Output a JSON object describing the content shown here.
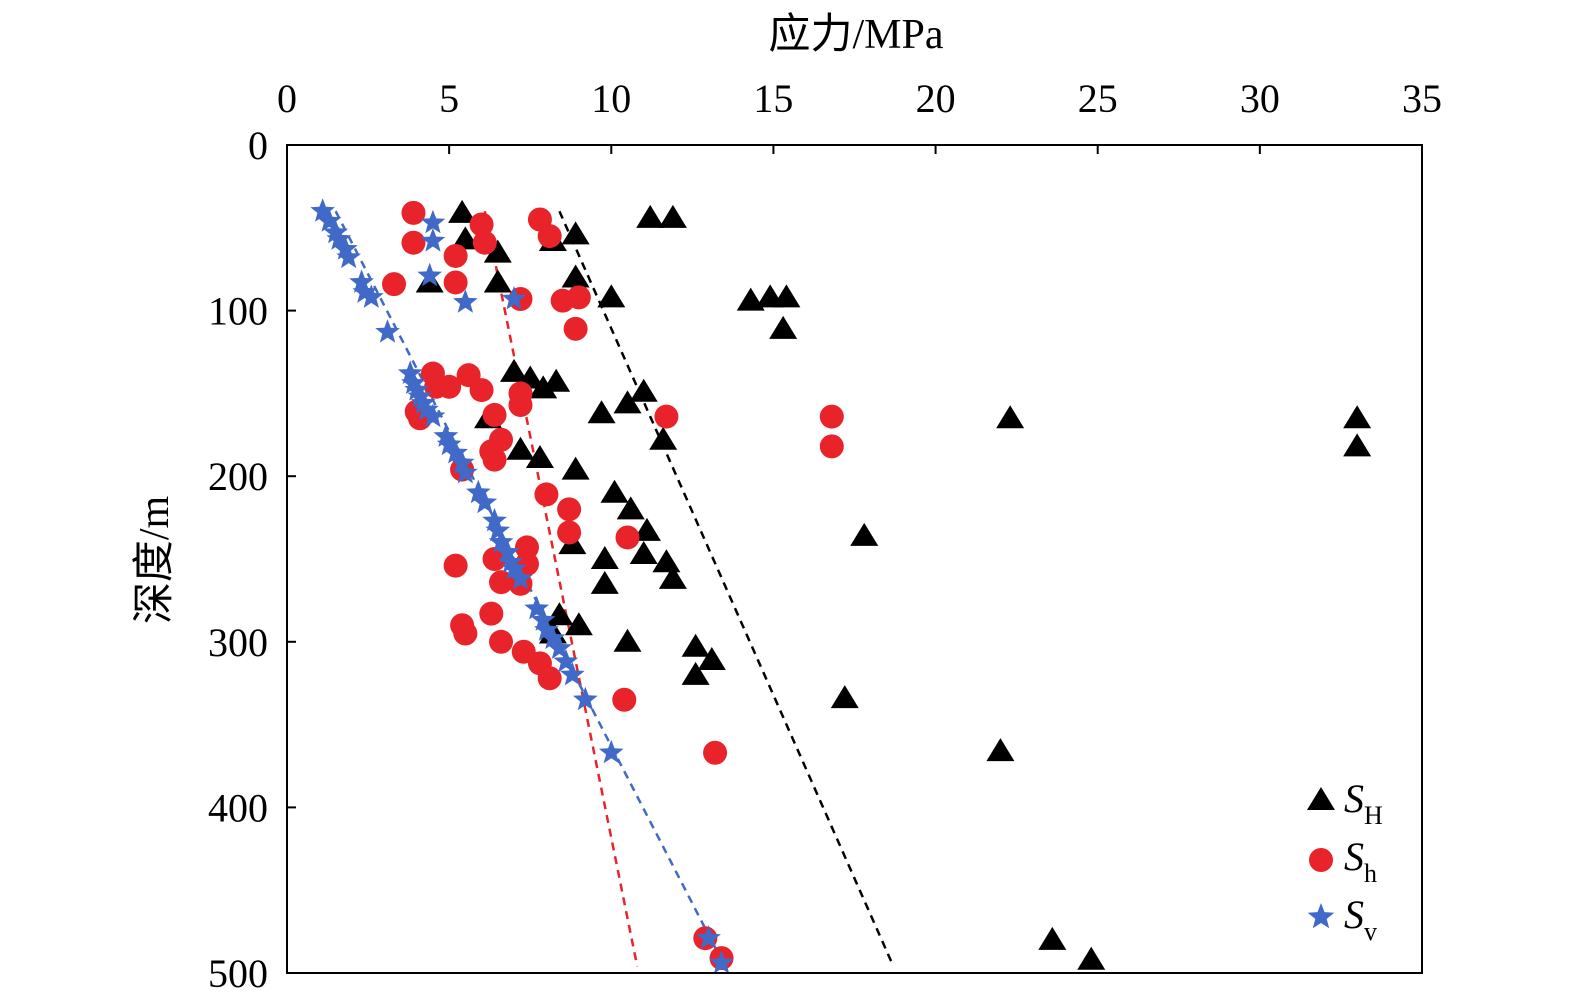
{
  "chart_data": {
    "type": "scatter",
    "xlabel": "应力/MPa",
    "ylabel": "深度/m",
    "xlim": [
      0,
      35
    ],
    "ylim": [
      0,
      500
    ],
    "y_inverted": true,
    "x_axis_position": "top",
    "x_ticks": [
      "0",
      "5",
      "10",
      "15",
      "20",
      "25",
      "30",
      "35"
    ],
    "y_ticks": [
      "0",
      "100",
      "200",
      "300",
      "400",
      "500"
    ],
    "grid": false,
    "legend_position": "bottom-right",
    "legend": [
      {
        "main": "S",
        "sub": "H"
      },
      {
        "main": "S",
        "sub": "h"
      },
      {
        "main": "S",
        "sub": "v"
      }
    ],
    "series": [
      {
        "name": "SH",
        "marker": "triangle",
        "color": "#000000",
        "points": [
          [
            5.4,
            41
          ],
          [
            11.2,
            44
          ],
          [
            11.9,
            44
          ],
          [
            5.5,
            57
          ],
          [
            8.2,
            58
          ],
          [
            8.9,
            54
          ],
          [
            6.5,
            65
          ],
          [
            4.4,
            83
          ],
          [
            6.5,
            83
          ],
          [
            8.9,
            80
          ],
          [
            10.0,
            92
          ],
          [
            14.3,
            94
          ],
          [
            14.9,
            92
          ],
          [
            15.4,
            92
          ],
          [
            15.3,
            111
          ],
          [
            7.0,
            137
          ],
          [
            7.5,
            141
          ],
          [
            8.3,
            143
          ],
          [
            7.9,
            147
          ],
          [
            11.0,
            149
          ],
          [
            10.5,
            156
          ],
          [
            9.7,
            162
          ],
          [
            6.2,
            165
          ],
          [
            22.3,
            165
          ],
          [
            33.0,
            165
          ],
          [
            11.6,
            178
          ],
          [
            33.0,
            182
          ],
          [
            7.2,
            184
          ],
          [
            7.8,
            189
          ],
          [
            8.9,
            196
          ],
          [
            10.1,
            210
          ],
          [
            10.6,
            220
          ],
          [
            11.1,
            233
          ],
          [
            17.8,
            236
          ],
          [
            8.8,
            241
          ],
          [
            9.8,
            250
          ],
          [
            11.0,
            247
          ],
          [
            11.7,
            252
          ],
          [
            11.9,
            262
          ],
          [
            9.8,
            265
          ],
          [
            8.4,
            284
          ],
          [
            8.2,
            295
          ],
          [
            9.0,
            290
          ],
          [
            10.5,
            300
          ],
          [
            12.6,
            303
          ],
          [
            13.1,
            311
          ],
          [
            12.6,
            320
          ],
          [
            17.2,
            334
          ],
          [
            22.0,
            366
          ],
          [
            23.6,
            480
          ],
          [
            24.8,
            492
          ]
        ]
      },
      {
        "name": "Sh",
        "marker": "circle",
        "color": "#e8232a",
        "points": [
          [
            3.9,
            41
          ],
          [
            7.8,
            45
          ],
          [
            6.0,
            48
          ],
          [
            8.1,
            55
          ],
          [
            3.9,
            59
          ],
          [
            6.1,
            59
          ],
          [
            5.2,
            67
          ],
          [
            3.3,
            84
          ],
          [
            5.2,
            83
          ],
          [
            7.2,
            93
          ],
          [
            8.5,
            94
          ],
          [
            9.0,
            92
          ],
          [
            8.9,
            111
          ],
          [
            4.5,
            138
          ],
          [
            5.6,
            139
          ],
          [
            4.6,
            146
          ],
          [
            5.0,
            146
          ],
          [
            6.0,
            148
          ],
          [
            7.2,
            150
          ],
          [
            4.0,
            161
          ],
          [
            6.4,
            163
          ],
          [
            7.2,
            157
          ],
          [
            11.7,
            164
          ],
          [
            16.8,
            164
          ],
          [
            4.1,
            165
          ],
          [
            6.6,
            178
          ],
          [
            16.8,
            182
          ],
          [
            6.3,
            185
          ],
          [
            6.4,
            190
          ],
          [
            5.4,
            196
          ],
          [
            8.0,
            211
          ],
          [
            8.7,
            220
          ],
          [
            8.7,
            234
          ],
          [
            10.5,
            237
          ],
          [
            7.4,
            243
          ],
          [
            6.4,
            250
          ],
          [
            7.4,
            253
          ],
          [
            5.2,
            254
          ],
          [
            6.6,
            264
          ],
          [
            7.2,
            265
          ],
          [
            6.3,
            283
          ],
          [
            5.4,
            290
          ],
          [
            5.5,
            295
          ],
          [
            6.6,
            300
          ],
          [
            7.3,
            306
          ],
          [
            7.8,
            313
          ],
          [
            8.1,
            322
          ],
          [
            10.4,
            335
          ],
          [
            13.2,
            367
          ],
          [
            12.9,
            479
          ],
          [
            13.4,
            491
          ]
        ]
      },
      {
        "name": "Sv",
        "marker": "star",
        "color": "#4169c8",
        "points": [
          [
            1.1,
            40
          ],
          [
            1.3,
            46
          ],
          [
            1.5,
            53
          ],
          [
            1.6,
            57
          ],
          [
            1.8,
            63
          ],
          [
            1.9,
            68
          ],
          [
            2.3,
            83
          ],
          [
            2.4,
            89
          ],
          [
            2.6,
            92
          ],
          [
            3.1,
            113
          ],
          [
            4.5,
            47
          ],
          [
            4.5,
            58
          ],
          [
            4.4,
            79
          ],
          [
            5.5,
            95
          ],
          [
            7.0,
            93
          ],
          [
            3.8,
            138
          ],
          [
            3.9,
            144
          ],
          [
            4.0,
            148
          ],
          [
            4.1,
            152
          ],
          [
            4.2,
            156
          ],
          [
            4.3,
            160
          ],
          [
            4.5,
            164
          ],
          [
            4.9,
            176
          ],
          [
            5.0,
            181
          ],
          [
            5.2,
            186
          ],
          [
            5.4,
            192
          ],
          [
            5.5,
            198
          ],
          [
            5.9,
            210
          ],
          [
            6.1,
            216
          ],
          [
            6.4,
            227
          ],
          [
            6.5,
            233
          ],
          [
            6.6,
            240
          ],
          [
            6.8,
            246
          ],
          [
            6.9,
            252
          ],
          [
            7.0,
            256
          ],
          [
            7.2,
            262
          ],
          [
            7.7,
            280
          ],
          [
            7.9,
            287
          ],
          [
            8.0,
            293
          ],
          [
            8.2,
            298
          ],
          [
            8.4,
            304
          ],
          [
            8.6,
            312
          ],
          [
            8.8,
            320
          ],
          [
            9.2,
            335
          ],
          [
            10.0,
            367
          ],
          [
            13.0,
            479
          ],
          [
            13.4,
            494
          ]
        ]
      }
    ],
    "trend_lines": [
      {
        "name": "SH-trend",
        "color": "#000000",
        "points": [
          [
            8.4,
            40
          ],
          [
            18.7,
            496
          ]
        ]
      },
      {
        "name": "Sh-trend",
        "color": "#e8232a",
        "points": [
          [
            6.1,
            40
          ],
          [
            10.8,
            496
          ]
        ]
      },
      {
        "name": "Sv-trend",
        "color": "#4169c8",
        "points": [
          [
            1.5,
            40
          ],
          [
            13.5,
            496
          ]
        ]
      }
    ]
  }
}
